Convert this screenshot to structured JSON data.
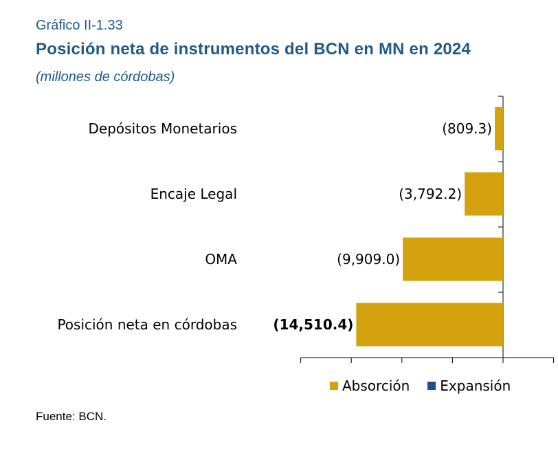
{
  "header": {
    "figure_label": "Gráfico II-1.33",
    "title": "Posición neta de instrumentos del BCN en MN en 2024",
    "subtitle": "(millones de córdobas)"
  },
  "legend": {
    "items": [
      {
        "label": "Absorción",
        "color": "#d4a20e"
      },
      {
        "label": "Expansión",
        "color": "#1f4e8c"
      }
    ]
  },
  "footer": {
    "source": "Fuente: BCN."
  },
  "chart_data": {
    "type": "bar",
    "orientation": "horizontal",
    "categories": [
      "Depósitos Monetarios",
      "Encaje Legal",
      "OMA",
      "Posición neta en córdobas"
    ],
    "series": [
      {
        "name": "Absorción",
        "values": [
          -809.3,
          -3792.2,
          -9909.0,
          -14510.4
        ],
        "color": "#d4a20e"
      }
    ],
    "data_labels": [
      "(809.3)",
      "(3,792.2)",
      "(9,909.0)",
      "(14,510.4)"
    ],
    "xlim": [
      -20000,
      5000
    ],
    "legend_position": "bottom",
    "grid": false
  }
}
